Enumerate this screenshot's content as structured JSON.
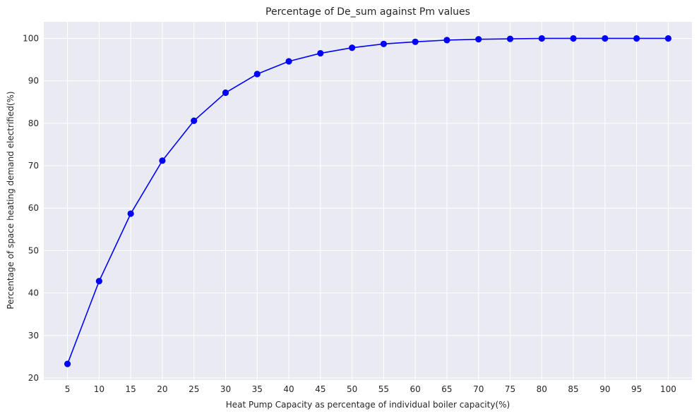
{
  "chart_data": {
    "type": "line",
    "title": "Percentage of De_sum against Pm values",
    "xlabel": "Heat Pump Capacity as percentage of individual boiler capacity(%)",
    "ylabel": "Percentage of space heating demand electrified(%)",
    "x": [
      5,
      10,
      15,
      20,
      25,
      30,
      35,
      40,
      45,
      50,
      55,
      60,
      65,
      70,
      75,
      80,
      85,
      90,
      95,
      100
    ],
    "series": [
      {
        "values": [
          23.3,
          42.8,
          58.7,
          71.2,
          80.6,
          87.2,
          91.6,
          94.6,
          96.5,
          97.8,
          98.7,
          99.2,
          99.6,
          99.8,
          99.9,
          100.0,
          100.0,
          100.0,
          100.0,
          100.0
        ],
        "color": "#0000ff",
        "marker": "circle"
      }
    ],
    "xticks": [
      5,
      10,
      15,
      20,
      25,
      30,
      35,
      40,
      45,
      50,
      55,
      60,
      65,
      70,
      75,
      80,
      85,
      90,
      95,
      100
    ],
    "yticks": [
      20,
      30,
      40,
      50,
      60,
      70,
      80,
      90,
      100
    ],
    "xlim": [
      1.25,
      103.75
    ],
    "ylim": [
      19.5,
      103.9
    ],
    "grid": true,
    "background_color": "#eaeaf2",
    "grid_color": "#ffffff"
  }
}
